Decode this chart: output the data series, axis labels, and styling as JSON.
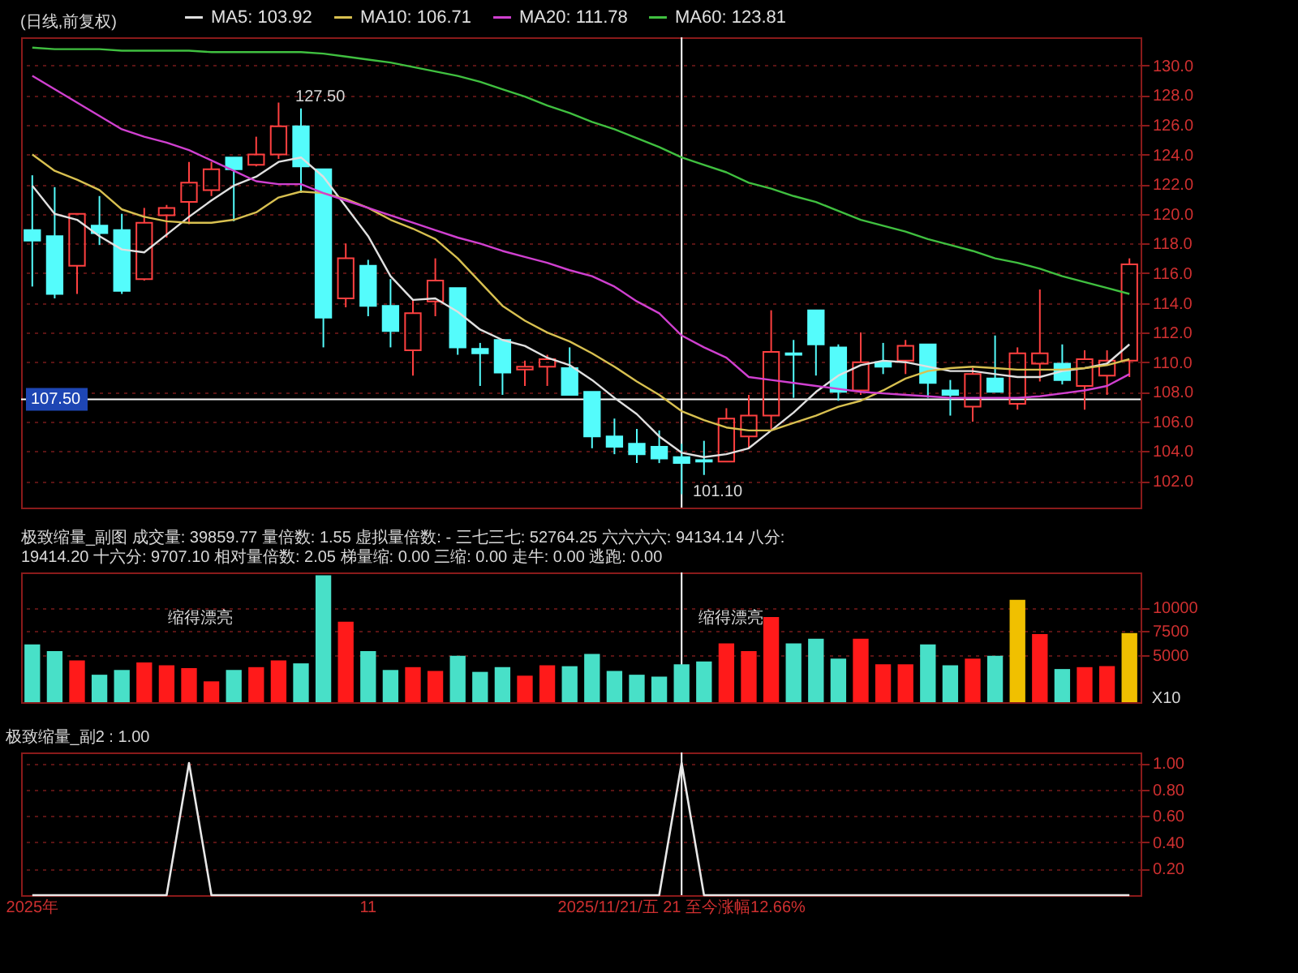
{
  "chart_data": [
    {
      "type": "candlestick",
      "title": "(日线,前复权)",
      "categories": [
        "2025年",
        null,
        null,
        null,
        null,
        null,
        null,
        null,
        null,
        null,
        null,
        null,
        null,
        null,
        null,
        "11",
        null,
        null,
        null,
        null,
        null,
        null,
        null,
        null,
        null,
        null,
        null,
        null,
        null,
        "2025/11/21/五 21 至今涨幅12.66%",
        null,
        null,
        null,
        null,
        null,
        null,
        null,
        null,
        null,
        null,
        null,
        null,
        null,
        null,
        null,
        null,
        null,
        null,
        null,
        null
      ],
      "ohlc": [
        [
          118.9,
          122.6,
          115.1,
          118.2
        ],
        [
          118.5,
          121.8,
          114.3,
          114.6
        ],
        [
          116.5,
          120.0,
          114.6,
          120.0
        ],
        [
          119.2,
          121.2,
          117.9,
          118.7
        ],
        [
          118.9,
          120.0,
          114.6,
          114.8
        ],
        [
          115.6,
          120.4,
          115.5,
          119.4
        ],
        [
          119.9,
          120.6,
          118.4,
          120.4
        ],
        [
          120.8,
          123.5,
          119.3,
          122.1
        ],
        [
          121.6,
          123.5,
          121.2,
          123.0
        ],
        [
          123.8,
          123.8,
          119.5,
          123.0
        ],
        [
          123.3,
          125.2,
          123.2,
          124.0
        ],
        [
          124.0,
          127.5,
          123.7,
          125.9
        ],
        [
          125.9,
          127.1,
          121.4,
          123.2
        ],
        [
          123.0,
          123.0,
          111.0,
          113.0
        ],
        [
          114.3,
          118.0,
          113.7,
          117.0
        ],
        [
          116.5,
          116.9,
          113.1,
          113.8
        ],
        [
          113.8,
          115.6,
          111.0,
          112.1
        ],
        [
          110.8,
          114.2,
          109.1,
          113.3
        ],
        [
          114.1,
          117.0,
          113.1,
          115.5
        ],
        [
          115.0,
          115.0,
          110.5,
          111.0
        ],
        [
          110.9,
          111.3,
          108.4,
          110.6
        ],
        [
          111.5,
          111.5,
          107.8,
          109.3
        ],
        [
          109.5,
          110.1,
          108.4,
          109.7
        ],
        [
          109.7,
          110.5,
          108.4,
          110.2
        ],
        [
          109.6,
          111.0,
          107.8,
          107.8
        ],
        [
          108.0,
          108.0,
          104.2,
          105.0
        ],
        [
          105.0,
          106.2,
          103.8,
          104.3
        ],
        [
          104.5,
          105.5,
          103.2,
          103.8
        ],
        [
          104.3,
          105.4,
          103.2,
          103.5
        ],
        [
          103.6,
          104.5,
          101.1,
          103.2
        ],
        [
          103.4,
          104.7,
          102.4,
          103.3
        ],
        [
          103.3,
          106.9,
          103.3,
          106.2
        ],
        [
          105.0,
          107.8,
          104.2,
          106.4
        ],
        [
          106.4,
          113.5,
          105.5,
          110.7
        ],
        [
          110.6,
          111.5,
          107.6,
          110.5
        ],
        [
          113.5,
          113.5,
          109.1,
          111.2
        ],
        [
          111.0,
          111.2,
          107.4,
          108.0
        ],
        [
          108.1,
          112.0,
          107.8,
          110.0
        ],
        [
          110.0,
          111.3,
          109.2,
          109.7
        ],
        [
          110.1,
          111.5,
          109.2,
          111.1
        ],
        [
          111.2,
          111.2,
          107.6,
          108.6
        ],
        [
          108.1,
          108.8,
          106.4,
          107.8
        ],
        [
          107.0,
          109.6,
          106.0,
          109.2
        ],
        [
          108.9,
          111.8,
          108.0,
          108.0
        ],
        [
          107.2,
          111.0,
          106.8,
          110.6
        ],
        [
          109.9,
          114.9,
          108.7,
          110.6
        ],
        [
          109.9,
          111.2,
          108.5,
          108.8
        ],
        [
          108.4,
          110.8,
          106.8,
          110.2
        ],
        [
          109.1,
          110.8,
          107.8,
          110.1
        ],
        [
          110.1,
          117.0,
          109.0,
          116.6
        ]
      ],
      "colors": [
        "#54fcfc",
        "#54fcfc",
        "#ff4040",
        "#54fcfc",
        "#54fcfc",
        "#ff4040",
        "#ff4040",
        "#ff4040",
        "#ff4040",
        "#54fcfc",
        "#ff4040",
        "#ff4040",
        "#54fcfc",
        "#54fcfc",
        "#ff4040",
        "#54fcfc",
        "#54fcfc",
        "#ff4040",
        "#ff4040",
        "#54fcfc",
        "#54fcfc",
        "#54fcfc",
        "#ff4040",
        "#ff4040",
        "#54fcfc",
        "#54fcfc",
        "#54fcfc",
        "#54fcfc",
        "#54fcfc",
        "#54fcfc",
        "#54fcfc",
        "#ff4040",
        "#ff4040",
        "#ff4040",
        "#54fcfc",
        "#54fcfc",
        "#54fcfc",
        "#ff4040",
        "#54fcfc",
        "#ff4040",
        "#54fcfc",
        "#54fcfc",
        "#ff4040",
        "#54fcfc",
        "#ff4040",
        "#ff4040",
        "#54fcfc",
        "#ff4040",
        "#ff4040",
        "#ff4040"
      ],
      "series": [
        {
          "name": "MA5: 103.92",
          "type": "line",
          "color": "#e0e0e0",
          "values": [
            121.9,
            120.0,
            119.6,
            118.5,
            117.6,
            117.4,
            118.6,
            119.8,
            120.9,
            121.9,
            122.5,
            123.5,
            123.8,
            122.5,
            120.5,
            118.5,
            115.8,
            114.2,
            114.3,
            113.4,
            112.2,
            111.5,
            111.1,
            110.3,
            109.8,
            108.8,
            107.6,
            106.5,
            105.0,
            103.9,
            103.6,
            103.8,
            104.2,
            105.4,
            106.6,
            108.0,
            109.1,
            109.8,
            110.1,
            110.0,
            109.7,
            109.4,
            109.4,
            109.2,
            109.0,
            109.0,
            109.4,
            109.6,
            109.9,
            111.2
          ]
        },
        {
          "name": "MA10: 106.71",
          "type": "line",
          "color": "#d8c050",
          "values": [
            124.0,
            122.9,
            122.3,
            121.6,
            120.3,
            119.8,
            119.5,
            119.4,
            119.4,
            119.6,
            120.1,
            121.1,
            121.5,
            121.4,
            121.0,
            120.4,
            119.6,
            119.0,
            118.3,
            117.0,
            115.4,
            113.8,
            112.8,
            112.0,
            111.4,
            110.6,
            109.7,
            108.7,
            107.8,
            106.7,
            106.1,
            105.6,
            105.4,
            105.4,
            105.9,
            106.4,
            107.0,
            107.4,
            108.1,
            108.9,
            109.4,
            109.6,
            109.7,
            109.6,
            109.5,
            109.5,
            109.5,
            109.6,
            109.8,
            110.2
          ]
        },
        {
          "name": "MA20: 111.78",
          "type": "line",
          "color": "#d040d0",
          "values": [
            129.3,
            128.4,
            127.5,
            126.6,
            125.7,
            125.2,
            124.8,
            124.3,
            123.6,
            122.9,
            122.2,
            122.0,
            122.0,
            121.4,
            120.9,
            120.4,
            119.9,
            119.4,
            118.9,
            118.4,
            118.0,
            117.5,
            117.1,
            116.7,
            116.2,
            115.8,
            115.1,
            114.1,
            113.3,
            111.8,
            111.0,
            110.3,
            109.0,
            108.8,
            108.6,
            108.4,
            108.2,
            108.0,
            107.9,
            107.8,
            107.7,
            107.6,
            107.6,
            107.6,
            107.6,
            107.7,
            107.9,
            108.1,
            108.4,
            109.2
          ]
        },
        {
          "name": "MA60: 123.81",
          "type": "line",
          "color": "#40c040",
          "values": [
            131.2,
            131.1,
            131.1,
            131.1,
            131.0,
            131.0,
            131.0,
            131.0,
            130.9,
            130.9,
            130.9,
            130.9,
            130.9,
            130.8,
            130.6,
            130.4,
            130.2,
            129.9,
            129.6,
            129.3,
            128.9,
            128.4,
            127.9,
            127.3,
            126.8,
            126.2,
            125.7,
            125.1,
            124.5,
            123.8,
            123.3,
            122.8,
            122.1,
            121.7,
            121.2,
            120.8,
            120.2,
            119.6,
            119.2,
            118.8,
            118.3,
            117.9,
            117.5,
            117.0,
            116.7,
            116.3,
            115.8,
            115.4,
            115.0,
            114.6
          ]
        }
      ],
      "ylim": [
        100.2,
        131.9
      ],
      "yticks": [
        {
          "value": 102,
          "label": "102.0"
        },
        {
          "value": 104,
          "label": "104.0"
        },
        {
          "value": 106,
          "label": "106.0"
        },
        {
          "value": 108,
          "label": "108.0"
        },
        {
          "value": 110,
          "label": "110.0"
        },
        {
          "value": 112,
          "label": "112.0"
        },
        {
          "value": 114,
          "label": "114.0"
        },
        {
          "value": 116,
          "label": "116.0"
        },
        {
          "value": 118,
          "label": "118.0"
        },
        {
          "value": 120,
          "label": "120.0"
        },
        {
          "value": 122,
          "label": "122.0"
        },
        {
          "value": 124,
          "label": "124.0"
        },
        {
          "value": 126,
          "label": "126.0"
        },
        {
          "value": 128,
          "label": "128.0"
        },
        {
          "value": 130,
          "label": "130.0"
        }
      ],
      "grid": "y",
      "legend": "top left",
      "tick_labels": "y",
      "ref_lines": [
        {
          "axis": "y",
          "value": 107.5,
          "label": "107.50",
          "color": "#ffffff"
        },
        {
          "axis": "x",
          "value": "2025/11/21/五 21 至今涨幅12.66%",
          "color": "#ffffff"
        }
      ],
      "annotations": [
        "127.50",
        "101.10"
      ]
    },
    {
      "type": "bar",
      "title": "极致缩量_副图 成交量: 39859.77 量倍数: 1.55 虚拟量倍数: - 三七三七: 52764.25 六六六六: 94134.14 八分: 19414.20 十六分: 9707.10 相对量倍数: 2.05 梯量缩: 0.00 三缩: 0.00 走牛: 0.00 逃跑: 0.00",
      "categories": [
        "2025年",
        null,
        null,
        null,
        null,
        null,
        null,
        null,
        null,
        null,
        null,
        null,
        null,
        null,
        null,
        "11",
        null,
        null,
        null,
        null,
        null,
        null,
        null,
        null,
        null,
        null,
        null,
        null,
        null,
        "2025/11/21/五 21 至今涨幅12.66%",
        null,
        null,
        null,
        null,
        null,
        null,
        null,
        null,
        null,
        null,
        null,
        null,
        null,
        null,
        null,
        null,
        null,
        null,
        null,
        null
      ],
      "values": [
        6100,
        5400,
        4400,
        2900,
        3400,
        4200,
        3900,
        3600,
        2200,
        3400,
        3700,
        4400,
        4100,
        13400,
        8500,
        5400,
        3400,
        3700,
        3300,
        4900,
        3200,
        3700,
        2800,
        3900,
        3800,
        5100,
        3300,
        2900,
        2700,
        4000,
        4300,
        6200,
        5400,
        9000,
        6200,
        6700,
        4600,
        6700,
        4000,
        4000,
        6100,
        3900,
        4600,
        4900,
        10800,
        7200,
        3500,
        3700,
        3800,
        7300
      ],
      "colors": [
        "#48e0c8",
        "#48e0c8",
        "#ff1a1a",
        "#48e0c8",
        "#48e0c8",
        "#ff1a1a",
        "#ff1a1a",
        "#ff1a1a",
        "#ff1a1a",
        "#48e0c8",
        "#ff1a1a",
        "#ff1a1a",
        "#48e0c8",
        "#48e0c8",
        "#ff1a1a",
        "#48e0c8",
        "#48e0c8",
        "#ff1a1a",
        "#ff1a1a",
        "#48e0c8",
        "#48e0c8",
        "#48e0c8",
        "#ff1a1a",
        "#ff1a1a",
        "#48e0c8",
        "#48e0c8",
        "#48e0c8",
        "#48e0c8",
        "#48e0c8",
        "#48e0c8",
        "#48e0c8",
        "#ff1a1a",
        "#ff1a1a",
        "#ff1a1a",
        "#48e0c8",
        "#48e0c8",
        "#48e0c8",
        "#ff1a1a",
        "#ff1a1a",
        "#ff1a1a",
        "#48e0c8",
        "#48e0c8",
        "#ff1a1a",
        "#48e0c8",
        "#f0c000",
        "#ff1a1a",
        "#48e0c8",
        "#ff1a1a",
        "#ff1a1a",
        "#f0c000"
      ],
      "ylim": [
        0,
        13700
      ],
      "yticks": [
        5000,
        7500,
        10000
      ],
      "grid": "y",
      "tick_labels": "y",
      "ref_lines": [
        {
          "axis": "x",
          "value": "2025/11/21/五 21 至今涨幅12.66%",
          "color": "#ffffff"
        }
      ],
      "annotations": [
        "缩得漂亮",
        "缩得漂亮",
        "X10"
      ]
    },
    {
      "type": "line",
      "title": "极致缩量_副2 : 1.00",
      "categories": [
        "2025年",
        null,
        null,
        null,
        null,
        null,
        null,
        null,
        null,
        null,
        null,
        null,
        null,
        null,
        null,
        "11",
        null,
        null,
        null,
        null,
        null,
        null,
        null,
        null,
        null,
        null,
        null,
        null,
        null,
        "2025/11/21/五 21 至今涨幅12.66%",
        null,
        null,
        null,
        null,
        null,
        null,
        null,
        null,
        null,
        null,
        null,
        null,
        null,
        null,
        null,
        null,
        null,
        null,
        null,
        null
      ],
      "values": [
        0,
        0,
        0,
        0,
        0,
        0,
        0,
        1,
        0,
        0,
        0,
        0,
        0,
        0,
        0,
        0,
        0,
        0,
        0,
        0,
        0,
        0,
        0,
        0,
        0,
        0,
        0,
        0,
        0,
        1,
        0,
        0,
        0,
        0,
        0,
        0,
        0,
        0,
        0,
        0,
        0,
        0,
        0,
        0,
        0,
        0,
        0,
        0,
        0,
        0
      ],
      "color": "#e8e8e8",
      "ylim": [
        0,
        1.08
      ],
      "yticks": [
        {
          "value": 0.2,
          "label": "0.20"
        },
        {
          "value": 0.4,
          "label": "0.40"
        },
        {
          "value": 0.6,
          "label": "0.60"
        },
        {
          "value": 0.8,
          "label": "0.80"
        },
        {
          "value": 1,
          "label": "1.00"
        }
      ],
      "grid": "y",
      "ref_lines": [
        {
          "axis": "x",
          "value": "2025/11/21/五 21 至今涨幅12.66%",
          "color": "#ffffff"
        }
      ]
    }
  ]
}
